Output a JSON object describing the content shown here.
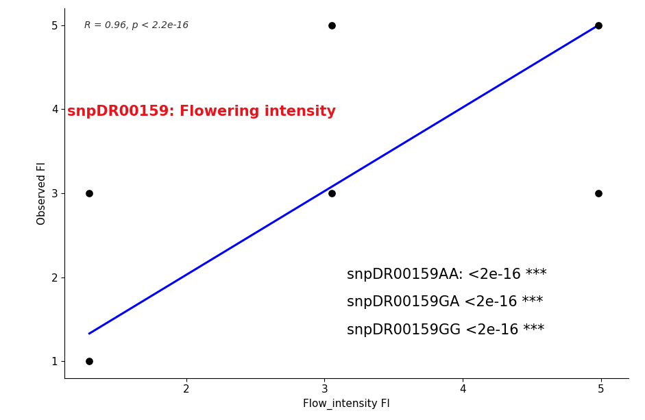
{
  "chart_data": {
    "type": "scatter",
    "x_label": "Flow_intensity FI",
    "y_label": "Observed FI",
    "series": [
      {
        "type": "scatter",
        "color": "#000000",
        "marker": "o",
        "x": [
          1.3,
          1.3,
          3.05,
          3.05,
          4.98,
          4.98
        ],
        "values": [
          1,
          3,
          3,
          5,
          3,
          5
        ]
      },
      {
        "type": "line",
        "color": "#0000ff",
        "line_style": "solid",
        "x": [
          1.3,
          4.98
        ],
        "values": [
          1.33,
          5.0
        ]
      }
    ],
    "annotations": [
      {
        "text": "R = 0.96, p < 2.2e-16",
        "color": "#333333"
      },
      {
        "text": "snpDR00159: Flowering intensity",
        "color": "#e8141c"
      },
      {
        "text": "snpDR00159AA: <2e-16 ***",
        "color": "#000000"
      },
      {
        "text": "snpDR00159GA <2e-16 ***",
        "color": "#000000"
      },
      {
        "text": "snpDR00159GG <2e-16 ***",
        "color": "#000000"
      }
    ],
    "xlim": [
      1.12,
      5.2
    ],
    "xticks": [
      2,
      3,
      4,
      5
    ],
    "ylim": [
      0.8,
      5.2
    ],
    "yticks": [
      1,
      2,
      3,
      4,
      5
    ],
    "grid": false
  }
}
